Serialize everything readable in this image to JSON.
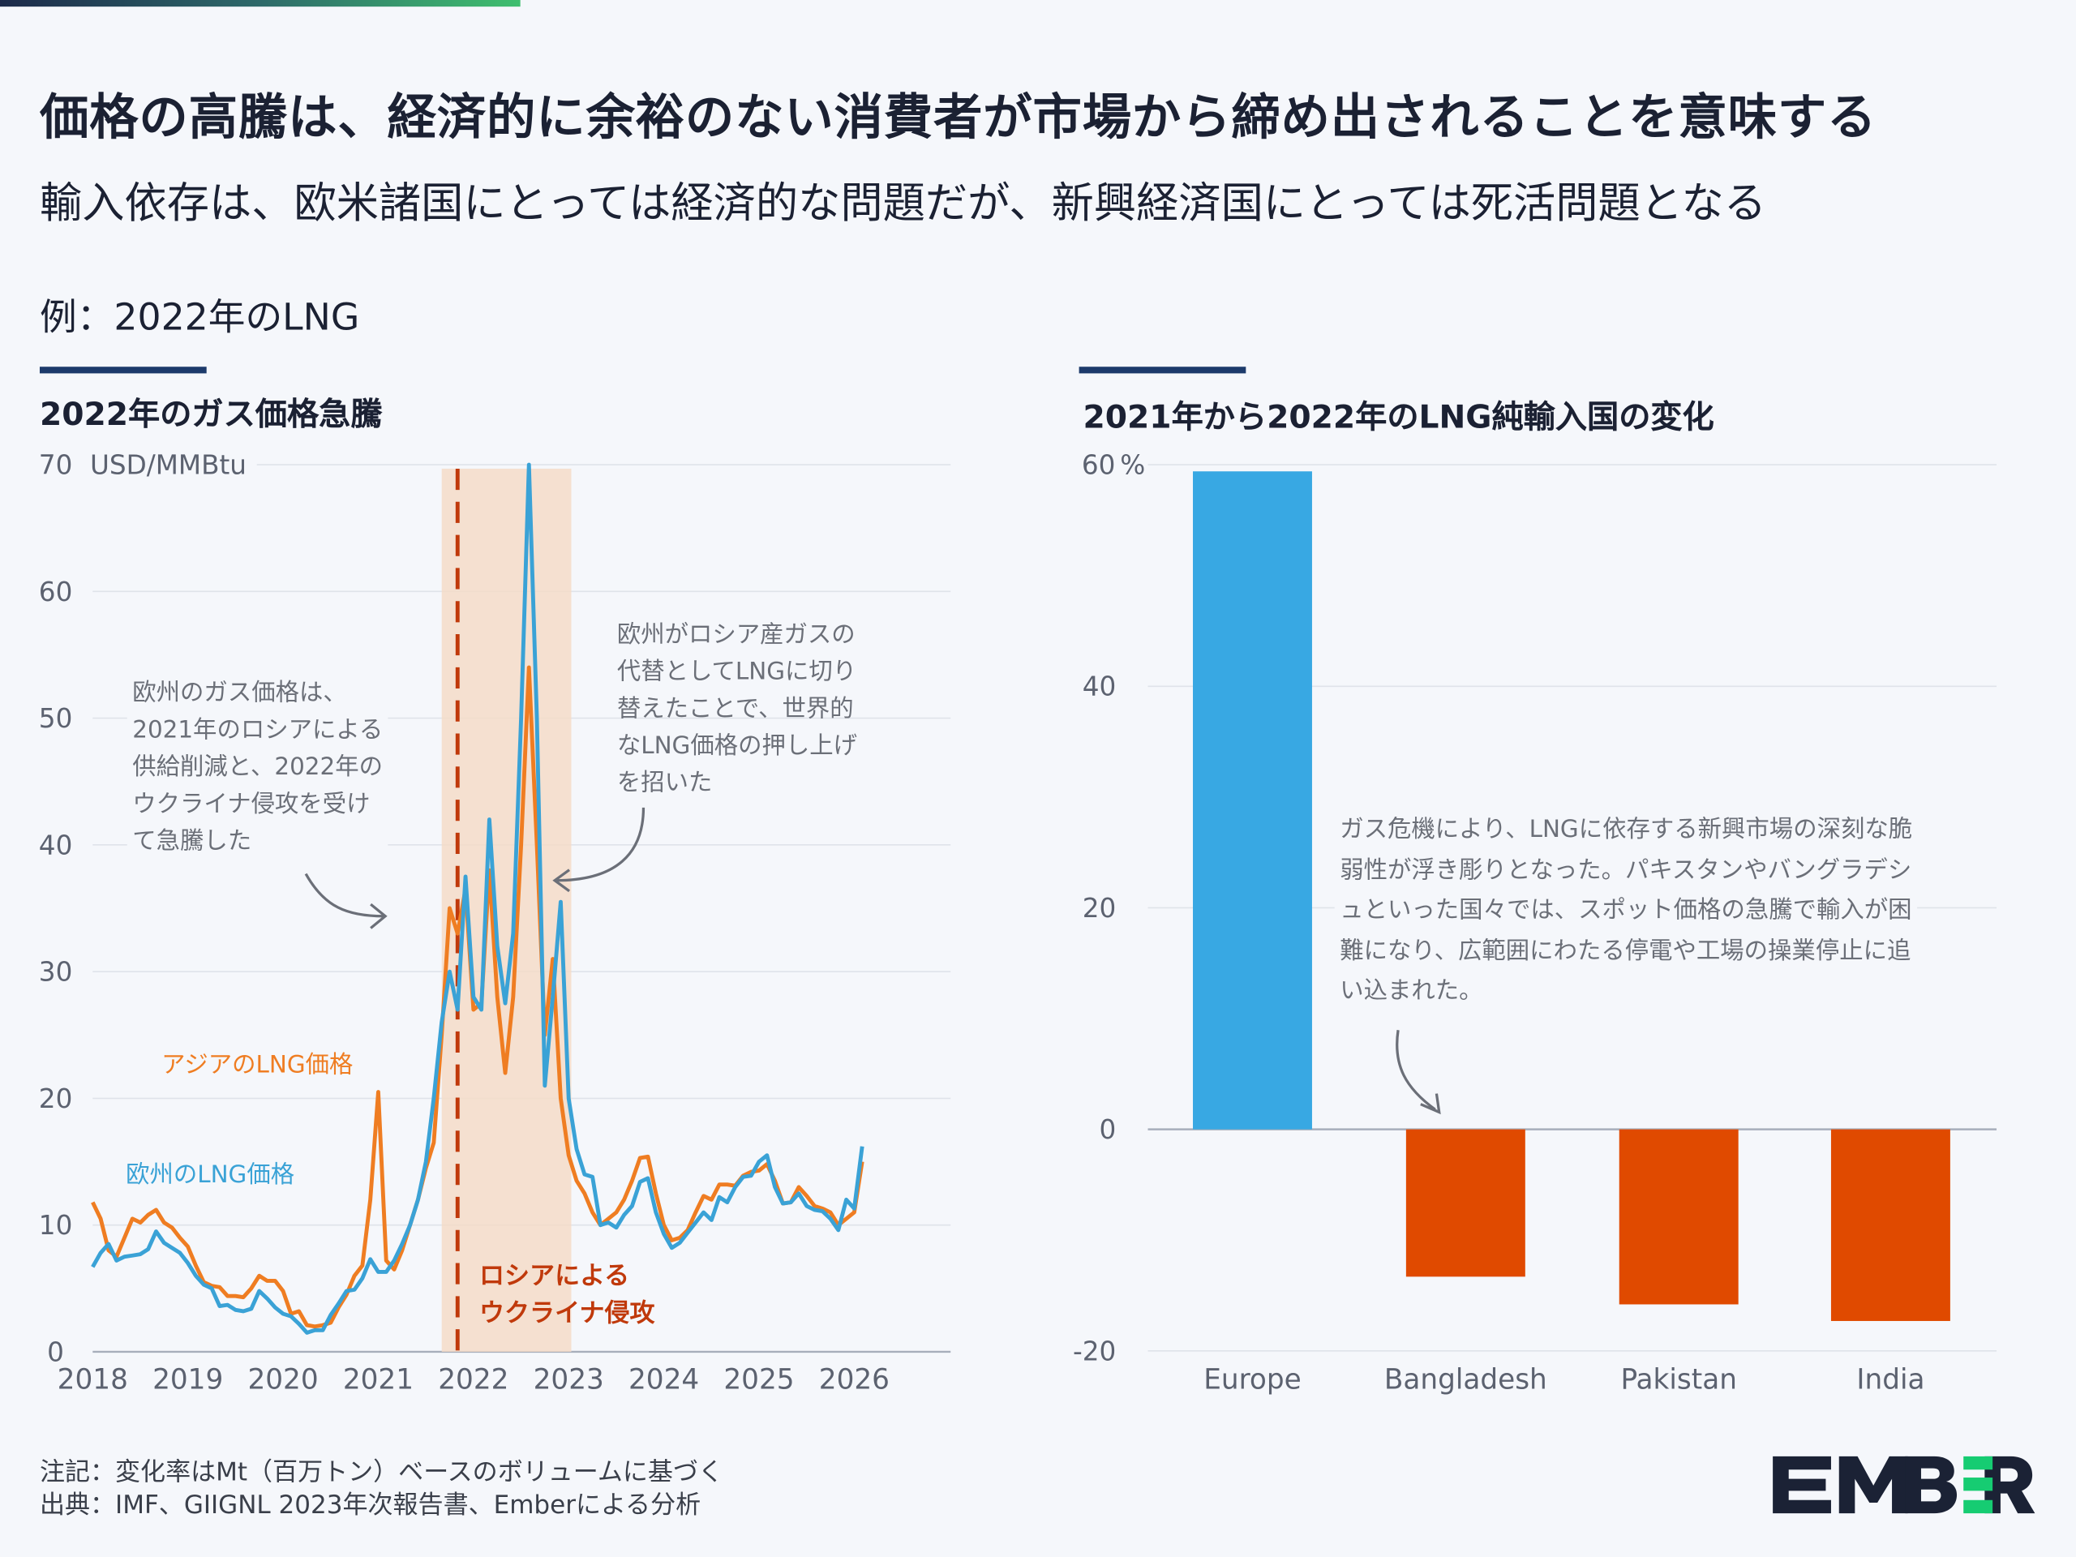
{
  "header": {
    "title": "価格の高騰は、経済的に余裕のない消費者が市場から締め出されることを意味する",
    "subtitle": "輸入依存は、欧米諸国にとっては経済的な問題だが、新興経済国にとっては死活問題となる",
    "example": "例：2022年のLNG"
  },
  "colors": {
    "asia_line": "#ef7d22",
    "europe_line": "#3aa2d6",
    "shade": "#f5dcc8",
    "invasion_line": "#c0390b",
    "bar_positive": "#38a8e3",
    "bar_negative": "#e04a00",
    "logo_dark": "#1b2235",
    "logo_green": "#16cc72"
  },
  "chart_data": [
    {
      "type": "line",
      "title": "2022年のガス価格急騰",
      "ylabel": "USD/MMBtu",
      "ylim": [
        0,
        70
      ],
      "yticks": [
        "0",
        "10",
        "20",
        "30",
        "40",
        "50",
        "60",
        "70"
      ],
      "xticks": [
        "2018",
        "2019",
        "2020",
        "2021",
        "2022",
        "2023",
        "2024",
        "2025",
        "2026"
      ],
      "grid": true,
      "shaded_period": {
        "from": "2021-09",
        "to": "2022-12",
        "label_lines": [
          "ロシアによる",
          "ウクライナ侵攻"
        ]
      },
      "event_line": "2021-11",
      "annotations": [
        {
          "lines": [
            "欧州のガス価格は、",
            "2021年のロシアによる",
            "供給削減と、2022年の",
            "ウクライナ侵攻を受け",
            "て急騰した"
          ]
        },
        {
          "lines": [
            "欧州がロシア産ガスの",
            "代替としてLNGに切り",
            "替えたことで、世界的",
            "なLNG価格の押し上げ",
            "を招いた"
          ]
        }
      ],
      "series": [
        {
          "name": "アジアのLNG価格",
          "color": "#ef7d22",
          "x": [
            "2018-01",
            "2018-02",
            "2018-03",
            "2018-04",
            "2018-05",
            "2018-06",
            "2018-07",
            "2018-08",
            "2018-09",
            "2018-10",
            "2018-11",
            "2018-12",
            "2019-01",
            "2019-02",
            "2019-03",
            "2019-04",
            "2019-05",
            "2019-06",
            "2019-07",
            "2019-08",
            "2019-09",
            "2019-10",
            "2019-11",
            "2019-12",
            "2020-01",
            "2020-02",
            "2020-03",
            "2020-04",
            "2020-05",
            "2020-06",
            "2020-07",
            "2020-08",
            "2020-09",
            "2020-10",
            "2020-11",
            "2020-12",
            "2021-01",
            "2021-02",
            "2021-03",
            "2021-04",
            "2021-05",
            "2021-06",
            "2021-07",
            "2021-08",
            "2021-09",
            "2021-10",
            "2021-11",
            "2021-12",
            "2022-01",
            "2022-02",
            "2022-03",
            "2022-04",
            "2022-05",
            "2022-06",
            "2022-07",
            "2022-08",
            "2022-09",
            "2022-10",
            "2022-11",
            "2022-12",
            "2023-01",
            "2023-02",
            "2023-03",
            "2023-04",
            "2023-05",
            "2023-06",
            "2023-07",
            "2023-08",
            "2023-09",
            "2023-10",
            "2023-11",
            "2023-12",
            "2024-01",
            "2024-02",
            "2024-03",
            "2024-04",
            "2024-05",
            "2024-06",
            "2024-07",
            "2024-08",
            "2024-09",
            "2024-10",
            "2024-11",
            "2024-12",
            "2025-01",
            "2025-02",
            "2025-03",
            "2025-04",
            "2025-05",
            "2025-06",
            "2025-07",
            "2025-08",
            "2025-09",
            "2025-10",
            "2025-11",
            "2025-12",
            "2026-01",
            "2026-02"
          ],
          "values": [
            11.8,
            10.5,
            8.0,
            7.5,
            9.0,
            10.5,
            10.2,
            10.8,
            11.2,
            10.2,
            9.8,
            9.0,
            8.3,
            6.8,
            5.5,
            5.2,
            5.1,
            4.4,
            4.4,
            4.3,
            5.0,
            6.0,
            5.6,
            5.6,
            4.8,
            3.0,
            3.2,
            2.1,
            2.0,
            2.1,
            2.3,
            3.5,
            4.5,
            6.0,
            6.8,
            12.0,
            20.5,
            7.2,
            6.5,
            8.0,
            10.0,
            12.0,
            14.5,
            16.5,
            25.0,
            35.0,
            33.0,
            36.5,
            27.0,
            27.5,
            38.0,
            28.0,
            22.0,
            28.0,
            40.0,
            54.0,
            40.0,
            25.0,
            31.0,
            20.0,
            15.5,
            13.5,
            12.5,
            11.0,
            10.0,
            10.5,
            11.0,
            12.0,
            13.5,
            15.3,
            15.4,
            12.5,
            10.0,
            8.8,
            9.0,
            9.6,
            11.0,
            12.3,
            12.0,
            13.2,
            13.2,
            13.1,
            13.9,
            14.2,
            14.3,
            14.8,
            13.5,
            11.7,
            11.8,
            13.0,
            12.3,
            11.5,
            11.3,
            11.0,
            10.0,
            10.5,
            11.0,
            15.0
          ]
        },
        {
          "name": "欧州のLNG価格",
          "color": "#3aa2d6",
          "x": [
            "2018-01",
            "2018-02",
            "2018-03",
            "2018-04",
            "2018-05",
            "2018-06",
            "2018-07",
            "2018-08",
            "2018-09",
            "2018-10",
            "2018-11",
            "2018-12",
            "2019-01",
            "2019-02",
            "2019-03",
            "2019-04",
            "2019-05",
            "2019-06",
            "2019-07",
            "2019-08",
            "2019-09",
            "2019-10",
            "2019-11",
            "2019-12",
            "2020-01",
            "2020-02",
            "2020-03",
            "2020-04",
            "2020-05",
            "2020-06",
            "2020-07",
            "2020-08",
            "2020-09",
            "2020-10",
            "2020-11",
            "2020-12",
            "2021-01",
            "2021-02",
            "2021-03",
            "2021-04",
            "2021-05",
            "2021-06",
            "2021-07",
            "2021-08",
            "2021-09",
            "2021-10",
            "2021-11",
            "2021-12",
            "2022-01",
            "2022-02",
            "2022-03",
            "2022-04",
            "2022-05",
            "2022-06",
            "2022-07",
            "2022-08",
            "2022-09",
            "2022-10",
            "2022-11",
            "2022-12",
            "2023-01",
            "2023-02",
            "2023-03",
            "2023-04",
            "2023-05",
            "2023-06",
            "2023-07",
            "2023-08",
            "2023-09",
            "2023-10",
            "2023-11",
            "2023-12",
            "2024-01",
            "2024-02",
            "2024-03",
            "2024-04",
            "2024-05",
            "2024-06",
            "2024-07",
            "2024-08",
            "2024-09",
            "2024-10",
            "2024-11",
            "2024-12",
            "2025-01",
            "2025-02",
            "2025-03",
            "2025-04",
            "2025-05",
            "2025-06",
            "2025-07",
            "2025-08",
            "2025-09",
            "2025-10",
            "2025-11",
            "2025-12",
            "2026-01",
            "2026-02"
          ],
          "values": [
            6.7,
            7.8,
            8.5,
            7.2,
            7.5,
            7.6,
            7.7,
            8.1,
            9.5,
            8.6,
            8.2,
            7.8,
            7.0,
            6.0,
            5.3,
            5.0,
            3.6,
            3.7,
            3.3,
            3.2,
            3.4,
            4.8,
            4.2,
            3.5,
            3.0,
            2.8,
            2.2,
            1.5,
            1.7,
            1.7,
            2.9,
            3.8,
            4.8,
            4.9,
            5.8,
            7.3,
            6.3,
            6.3,
            7.2,
            8.5,
            10.0,
            12.0,
            15.0,
            20.0,
            26.0,
            30.0,
            27.0,
            37.5,
            28.0,
            27.0,
            42.0,
            32.0,
            27.5,
            33.0,
            50.0,
            70.0,
            50.0,
            21.0,
            28.0,
            35.5,
            20.0,
            16.0,
            14.0,
            13.8,
            10.0,
            10.2,
            9.8,
            10.8,
            11.5,
            13.4,
            13.7,
            11.0,
            9.3,
            8.2,
            8.6,
            9.4,
            10.2,
            11.0,
            10.4,
            12.2,
            11.8,
            13.0,
            13.8,
            13.9,
            15.0,
            15.5,
            13.0,
            11.7,
            11.8,
            12.5,
            11.5,
            11.2,
            11.1,
            10.5,
            9.6,
            12.0,
            11.3,
            16.2
          ]
        }
      ]
    },
    {
      "type": "bar",
      "title": "2021年から2022年のLNG純輸入国の変化",
      "ylabel": "%",
      "ylim": [
        -20,
        60
      ],
      "yticks": [
        "-20",
        "0",
        "20",
        "40",
        "60"
      ],
      "grid": true,
      "categories": [
        "Europe",
        "Bangladesh",
        "Pakistan",
        "India"
      ],
      "values": [
        59.4,
        -13.3,
        -15.8,
        -17.3
      ],
      "annotation": {
        "lines": [
          "ガス危機により、LNGに依存する新興市場の深刻な脆",
          "弱性が浮き彫りとなった。パキスタンやバングラデシ",
          "ュといった国々では、スポット価格の急騰で輸入が困",
          "難になり、広範囲にわたる停電や工場の操業停止に追",
          "い込まれた。"
        ]
      }
    }
  ],
  "footer": {
    "note": "注記：変化率はMt（百万トン）ベースのボリュームに基づく",
    "source": "出典：IMF、GIIGNL 2023年次報告書、Emberによる分析"
  },
  "logo": {
    "text": "EMBER"
  }
}
